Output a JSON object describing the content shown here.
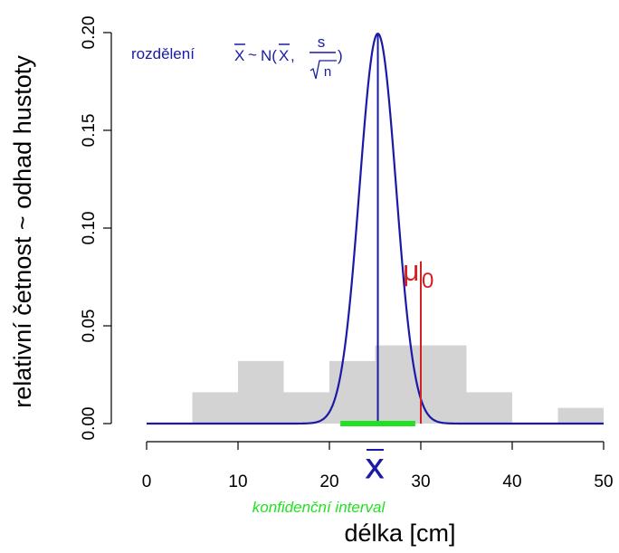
{
  "chart_data": {
    "type": "histogram",
    "xlabel": "délka [cm]",
    "ylabel": "relativní četnost ~ odhad hustoty",
    "xlim": [
      0,
      50
    ],
    "ylim": [
      0,
      0.2
    ],
    "x_ticks": [
      0,
      10,
      20,
      30,
      40,
      50
    ],
    "y_ticks": [
      0.0,
      0.05,
      0.1,
      0.15,
      0.2
    ],
    "x_tick_labels": [
      "0",
      "10",
      "20",
      "30",
      "40",
      "50"
    ],
    "y_tick_labels": [
      "0.00",
      "0.05",
      "0.10",
      "0.15",
      "0.20"
    ],
    "histogram_bins": [
      {
        "from": 5,
        "to": 10,
        "density": 0.016
      },
      {
        "from": 10,
        "to": 15,
        "density": 0.032
      },
      {
        "from": 15,
        "to": 20,
        "density": 0.016
      },
      {
        "from": 20,
        "to": 25,
        "density": 0.032
      },
      {
        "from": 25,
        "to": 30,
        "density": 0.04
      },
      {
        "from": 30,
        "to": 35,
        "density": 0.04
      },
      {
        "from": 35,
        "to": 40,
        "density": 0.016
      },
      {
        "from": 40,
        "to": 45,
        "density": 0.0
      },
      {
        "from": 45,
        "to": 50,
        "density": 0.008
      }
    ],
    "normal_curve": {
      "mean": 25.3,
      "sd": 2.0,
      "label_prefix": "rozdělení"
    },
    "mean_line": {
      "x": 25.3,
      "label": "X"
    },
    "mu0_line": {
      "x": 30,
      "top": 0.083,
      "label": "μ",
      "subscript": "0"
    },
    "confidence_interval": {
      "from": 21.2,
      "to": 29.4,
      "label": "konfidenční interval"
    },
    "colors": {
      "bars": "#d3d3d3",
      "curve": "#1a1aa6",
      "mu0": "#d42020",
      "interval": "#22e022",
      "axis": "#000000"
    },
    "formula": {
      "xbar": "X",
      "tilde": "~",
      "n_open": "N(",
      "comma": ",",
      "s": "s",
      "n": "n",
      "close": ")"
    }
  }
}
